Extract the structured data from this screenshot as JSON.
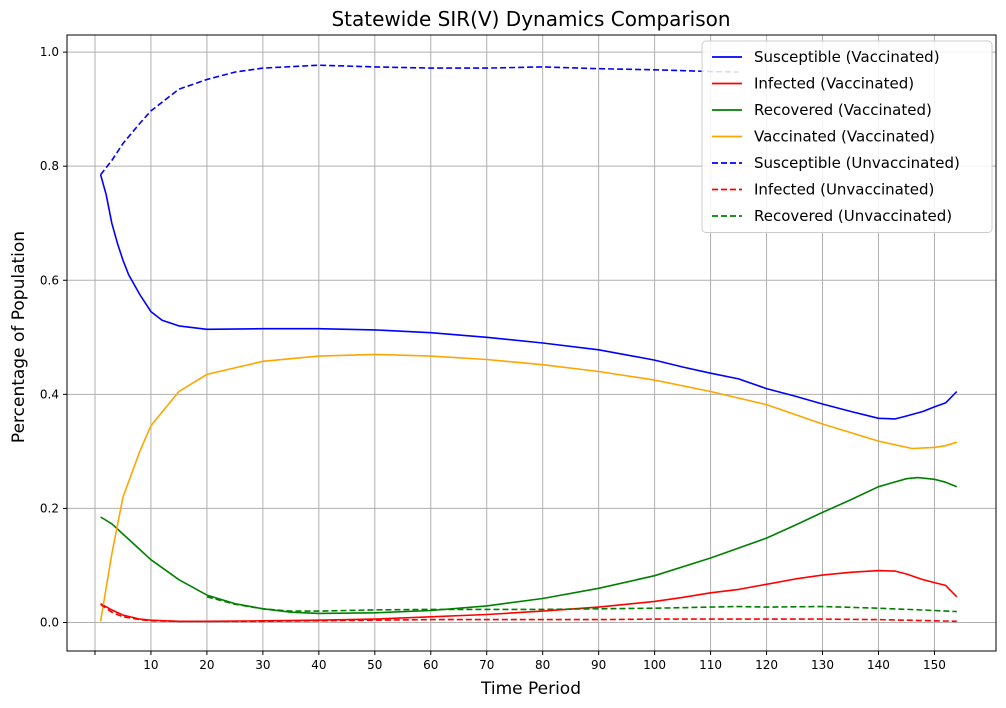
{
  "chart_data": {
    "type": "line",
    "title": "Statewide SIR(V) Dynamics Comparison",
    "xlabel": "Time Period",
    "ylabel": "Percentage of Population",
    "xlim": [
      -5,
      161
    ],
    "ylim": [
      -0.05,
      1.03
    ],
    "xticks": [
      0,
      10,
      20,
      30,
      40,
      50,
      60,
      70,
      80,
      90,
      100,
      110,
      120,
      130,
      140,
      150
    ],
    "xtick_labels": [
      "",
      "10",
      "20",
      "30",
      "40",
      "50",
      "60",
      "70",
      "80",
      "90",
      "100",
      "110",
      "120",
      "130",
      "140",
      "150"
    ],
    "yticks": [
      0.0,
      0.2,
      0.4,
      0.6,
      0.8,
      1.0
    ],
    "ytick_labels": [
      "0.0",
      "0.2",
      "0.4",
      "0.6",
      "0.8",
      "1.0"
    ],
    "grid": true,
    "legend_position": "top-right",
    "series": [
      {
        "name": "Susceptible (Vaccinated)",
        "color": "#0000ff",
        "style": "solid",
        "points": [
          [
            1,
            0.785
          ],
          [
            2,
            0.75
          ],
          [
            3,
            0.7
          ],
          [
            4,
            0.665
          ],
          [
            5,
            0.635
          ],
          [
            6,
            0.61
          ],
          [
            8,
            0.575
          ],
          [
            10,
            0.545
          ],
          [
            12,
            0.53
          ],
          [
            15,
            0.52
          ],
          [
            20,
            0.514
          ],
          [
            30,
            0.515
          ],
          [
            40,
            0.515
          ],
          [
            50,
            0.513
          ],
          [
            60,
            0.508
          ],
          [
            70,
            0.5
          ],
          [
            80,
            0.49
          ],
          [
            90,
            0.478
          ],
          [
            100,
            0.46
          ],
          [
            105,
            0.448
          ],
          [
            110,
            0.437
          ],
          [
            115,
            0.427
          ],
          [
            120,
            0.41
          ],
          [
            125,
            0.397
          ],
          [
            130,
            0.383
          ],
          [
            135,
            0.37
          ],
          [
            140,
            0.358
          ],
          [
            143,
            0.357
          ],
          [
            145,
            0.362
          ],
          [
            148,
            0.37
          ],
          [
            150,
            0.378
          ],
          [
            152,
            0.385
          ],
          [
            154,
            0.405
          ]
        ]
      },
      {
        "name": "Infected (Vaccinated)",
        "color": "#ff0000",
        "style": "solid",
        "points": [
          [
            1,
            0.033
          ],
          [
            3,
            0.022
          ],
          [
            5,
            0.013
          ],
          [
            8,
            0.006
          ],
          [
            10,
            0.004
          ],
          [
            15,
            0.002
          ],
          [
            20,
            0.002
          ],
          [
            30,
            0.003
          ],
          [
            40,
            0.004
          ],
          [
            50,
            0.006
          ],
          [
            60,
            0.01
          ],
          [
            70,
            0.014
          ],
          [
            80,
            0.02
          ],
          [
            90,
            0.027
          ],
          [
            100,
            0.037
          ],
          [
            105,
            0.044
          ],
          [
            110,
            0.052
          ],
          [
            115,
            0.058
          ],
          [
            120,
            0.067
          ],
          [
            125,
            0.076
          ],
          [
            130,
            0.083
          ],
          [
            135,
            0.088
          ],
          [
            140,
            0.091
          ],
          [
            143,
            0.09
          ],
          [
            145,
            0.085
          ],
          [
            148,
            0.075
          ],
          [
            150,
            0.07
          ],
          [
            152,
            0.065
          ],
          [
            154,
            0.045
          ]
        ]
      },
      {
        "name": "Recovered (Vaccinated)",
        "color": "#008000",
        "style": "solid",
        "points": [
          [
            1,
            0.185
          ],
          [
            3,
            0.173
          ],
          [
            5,
            0.155
          ],
          [
            8,
            0.128
          ],
          [
            10,
            0.11
          ],
          [
            15,
            0.075
          ],
          [
            20,
            0.048
          ],
          [
            25,
            0.033
          ],
          [
            30,
            0.024
          ],
          [
            35,
            0.018
          ],
          [
            40,
            0.016
          ],
          [
            50,
            0.017
          ],
          [
            60,
            0.021
          ],
          [
            70,
            0.029
          ],
          [
            80,
            0.042
          ],
          [
            90,
            0.06
          ],
          [
            100,
            0.082
          ],
          [
            110,
            0.113
          ],
          [
            120,
            0.148
          ],
          [
            125,
            0.17
          ],
          [
            130,
            0.193
          ],
          [
            135,
            0.215
          ],
          [
            140,
            0.238
          ],
          [
            145,
            0.252
          ],
          [
            147,
            0.254
          ],
          [
            150,
            0.251
          ],
          [
            152,
            0.246
          ],
          [
            154,
            0.238
          ]
        ]
      },
      {
        "name": "Vaccinated (Vaccinated)",
        "color": "#ffa500",
        "style": "solid",
        "points": [
          [
            1,
            0.002
          ],
          [
            3,
            0.12
          ],
          [
            5,
            0.22
          ],
          [
            8,
            0.3
          ],
          [
            10,
            0.345
          ],
          [
            15,
            0.405
          ],
          [
            20,
            0.435
          ],
          [
            30,
            0.458
          ],
          [
            40,
            0.467
          ],
          [
            50,
            0.47
          ],
          [
            60,
            0.467
          ],
          [
            70,
            0.461
          ],
          [
            80,
            0.452
          ],
          [
            90,
            0.44
          ],
          [
            100,
            0.425
          ],
          [
            110,
            0.405
          ],
          [
            120,
            0.382
          ],
          [
            130,
            0.348
          ],
          [
            140,
            0.318
          ],
          [
            146,
            0.305
          ],
          [
            150,
            0.307
          ],
          [
            152,
            0.31
          ],
          [
            154,
            0.316
          ]
        ]
      },
      {
        "name": "Susceptible (Unvaccinated)",
        "color": "#0000ff",
        "style": "dashed",
        "points": [
          [
            1,
            0.785
          ],
          [
            3,
            0.81
          ],
          [
            5,
            0.84
          ],
          [
            8,
            0.875
          ],
          [
            10,
            0.897
          ],
          [
            15,
            0.935
          ],
          [
            20,
            0.952
          ],
          [
            25,
            0.965
          ],
          [
            30,
            0.972
          ],
          [
            40,
            0.977
          ],
          [
            50,
            0.974
          ],
          [
            60,
            0.972
          ],
          [
            70,
            0.972
          ],
          [
            80,
            0.974
          ],
          [
            90,
            0.971
          ],
          [
            100,
            0.969
          ],
          [
            110,
            0.966
          ],
          [
            115,
            0.965
          ]
        ]
      },
      {
        "name": "Infected (Unvaccinated)",
        "color": "#ff0000",
        "style": "dashed",
        "points": [
          [
            1,
            0.032
          ],
          [
            3,
            0.018
          ],
          [
            5,
            0.01
          ],
          [
            8,
            0.005
          ],
          [
            10,
            0.003
          ],
          [
            15,
            0.002
          ],
          [
            20,
            0.002
          ],
          [
            30,
            0.002
          ],
          [
            40,
            0.003
          ],
          [
            50,
            0.004
          ],
          [
            60,
            0.005
          ],
          [
            70,
            0.005
          ],
          [
            80,
            0.005
          ],
          [
            90,
            0.005
          ],
          [
            100,
            0.006
          ],
          [
            110,
            0.006
          ],
          [
            120,
            0.006
          ],
          [
            130,
            0.006
          ],
          [
            140,
            0.005
          ],
          [
            150,
            0.003
          ],
          [
            154,
            0.002
          ]
        ]
      },
      {
        "name": "Recovered (Unvaccinated)",
        "color": "#008000",
        "style": "dashed",
        "points": [
          [
            20,
            0.045
          ],
          [
            25,
            0.032
          ],
          [
            30,
            0.024
          ],
          [
            35,
            0.02
          ],
          [
            40,
            0.02
          ],
          [
            50,
            0.022
          ],
          [
            60,
            0.023
          ],
          [
            70,
            0.023
          ],
          [
            80,
            0.023
          ],
          [
            90,
            0.024
          ],
          [
            100,
            0.025
          ],
          [
            110,
            0.027
          ],
          [
            115,
            0.028
          ],
          [
            120,
            0.027
          ],
          [
            130,
            0.028
          ],
          [
            140,
            0.025
          ],
          [
            150,
            0.021
          ],
          [
            154,
            0.019
          ]
        ]
      }
    ]
  }
}
